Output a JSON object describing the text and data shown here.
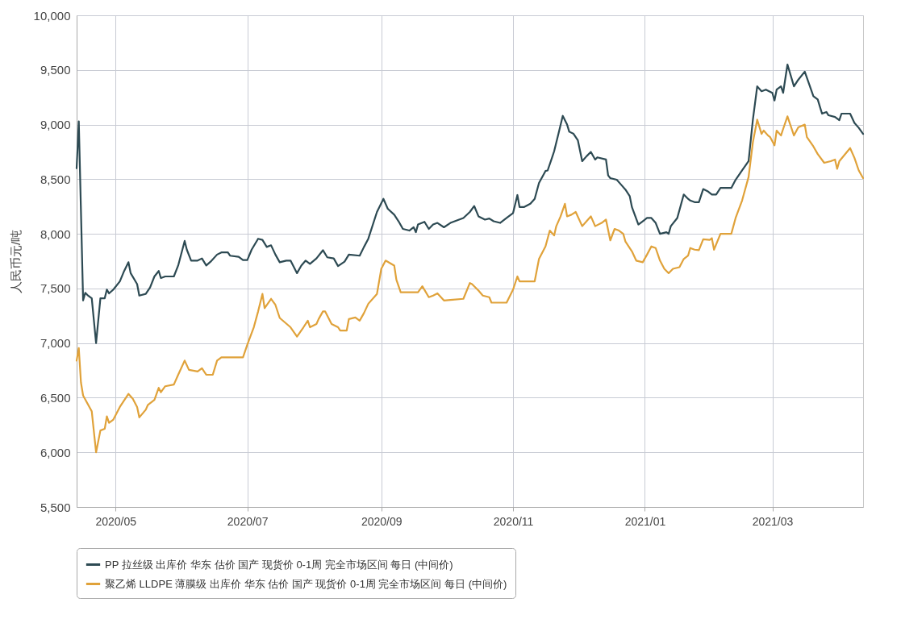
{
  "chart_data": {
    "type": "line",
    "ylabel": "人民币元/吨",
    "ylim": [
      5500,
      10000
    ],
    "yticks": [
      {
        "value": 5500,
        "label": "5,500"
      },
      {
        "value": 6000,
        "label": "6,000"
      },
      {
        "value": 6500,
        "label": "6,500"
      },
      {
        "value": 7000,
        "label": "7,000"
      },
      {
        "value": 7500,
        "label": "7,500"
      },
      {
        "value": 8000,
        "label": "8,000"
      },
      {
        "value": 8500,
        "label": "8,500"
      },
      {
        "value": 9000,
        "label": "9,000"
      },
      {
        "value": 9500,
        "label": "9,500"
      },
      {
        "value": 10000,
        "label": "10,000"
      }
    ],
    "xlim": [
      "2020-04-13",
      "2021-04-12"
    ],
    "xticks": [
      {
        "value": "2020-05",
        "label": "2020/05"
      },
      {
        "value": "2020-07",
        "label": "2020/07"
      },
      {
        "value": "2020-09",
        "label": "2020/09"
      },
      {
        "value": "2020-11",
        "label": "2020/11"
      },
      {
        "value": "2021-01",
        "label": "2021/01"
      },
      {
        "value": "2021-03",
        "label": "2021/03"
      }
    ],
    "grid": true,
    "legend": "bottom",
    "line_style": "solid",
    "series": [
      {
        "name": "PP 拉丝级 出库价 华东 估价 国产 现货价 0-1周 完全市场区间 每日 (中间价)",
        "color": "#2d4a53",
        "x": [
          "2020-04-13",
          "2020-04-14",
          "2020-04-16",
          "2020-04-17",
          "2020-04-18",
          "2020-04-20",
          "2020-04-22",
          "2020-04-24",
          "2020-04-26",
          "2020-04-27",
          "2020-04-28",
          "2020-04-30",
          "2020-05-03",
          "2020-05-05",
          "2020-05-07",
          "2020-05-08",
          "2020-05-11",
          "2020-05-12",
          "2020-05-15",
          "2020-05-17",
          "2020-05-19",
          "2020-05-21",
          "2020-05-22",
          "2020-05-24",
          "2020-05-28",
          "2020-05-30",
          "2020-06-02",
          "2020-06-03",
          "2020-06-05",
          "2020-06-08",
          "2020-06-10",
          "2020-06-12",
          "2020-06-14",
          "2020-06-17",
          "2020-06-19",
          "2020-06-22",
          "2020-06-23",
          "2020-06-27",
          "2020-06-29",
          "2020-07-01",
          "2020-07-03",
          "2020-07-06",
          "2020-07-08",
          "2020-07-10",
          "2020-07-12",
          "2020-07-14",
          "2020-07-16",
          "2020-07-19",
          "2020-07-21",
          "2020-07-24",
          "2020-07-26",
          "2020-07-28",
          "2020-07-30",
          "2020-08-02",
          "2020-08-05",
          "2020-08-07",
          "2020-08-10",
          "2020-08-12",
          "2020-08-15",
          "2020-08-17",
          "2020-08-22",
          "2020-08-24",
          "2020-08-26",
          "2020-08-30",
          "2020-09-02",
          "2020-09-04",
          "2020-09-07",
          "2020-09-09",
          "2020-09-11",
          "2020-09-14",
          "2020-09-16",
          "2020-09-17",
          "2020-09-18",
          "2020-09-21",
          "2020-09-23",
          "2020-09-25",
          "2020-09-27",
          "2020-09-30",
          "2020-10-03",
          "2020-10-09",
          "2020-10-12",
          "2020-10-14",
          "2020-10-16",
          "2020-10-19",
          "2020-10-21",
          "2020-10-23",
          "2020-10-26",
          "2020-10-29",
          "2020-11-01",
          "2020-11-03",
          "2020-11-04",
          "2020-11-06",
          "2020-11-09",
          "2020-11-11",
          "2020-11-13",
          "2020-11-16",
          "2020-11-17",
          "2020-11-19",
          "2020-11-20",
          "2020-11-22",
          "2020-11-24",
          "2020-11-26",
          "2020-11-27",
          "2020-11-29",
          "2020-12-01",
          "2020-12-03",
          "2020-12-05",
          "2020-12-07",
          "2020-12-09",
          "2020-12-10",
          "2020-12-14",
          "2020-12-15",
          "2020-12-16",
          "2020-12-19",
          "2020-12-21",
          "2020-12-23",
          "2020-12-25",
          "2020-12-26",
          "2020-12-29",
          "2020-12-31",
          "2021-01-02",
          "2021-01-04",
          "2021-01-06",
          "2021-01-08",
          "2021-01-11",
          "2021-01-12",
          "2021-01-13",
          "2021-01-16",
          "2021-01-19",
          "2021-01-21",
          "2021-01-22",
          "2021-01-24",
          "2021-01-26",
          "2021-01-28",
          "2021-01-30",
          "2021-02-01",
          "2021-02-03",
          "2021-02-05",
          "2021-02-10",
          "2021-02-12",
          "2021-02-15",
          "2021-02-18",
          "2021-02-20",
          "2021-02-22",
          "2021-02-24",
          "2021-02-26",
          "2021-03-01",
          "2021-03-02",
          "2021-03-03",
          "2021-03-05",
          "2021-03-06",
          "2021-03-08",
          "2021-03-11",
          "2021-03-13",
          "2021-03-16",
          "2021-03-20",
          "2021-03-22",
          "2021-03-24",
          "2021-03-26",
          "2021-03-27",
          "2021-03-30",
          "2021-04-01",
          "2021-04-02",
          "2021-04-06",
          "2021-04-08",
          "2021-04-10",
          "2021-04-12"
        ],
        "values": [
          8600,
          9030,
          7390,
          7460,
          7440,
          7410,
          7000,
          7410,
          7410,
          7490,
          7455,
          7490,
          7565,
          7660,
          7740,
          7640,
          7540,
          7435,
          7450,
          7510,
          7610,
          7660,
          7595,
          7610,
          7610,
          7710,
          7935,
          7855,
          7755,
          7755,
          7775,
          7710,
          7745,
          7810,
          7830,
          7830,
          7800,
          7790,
          7760,
          7760,
          7855,
          7955,
          7945,
          7880,
          7895,
          7810,
          7740,
          7755,
          7755,
          7640,
          7710,
          7755,
          7725,
          7775,
          7850,
          7785,
          7775,
          7705,
          7745,
          7810,
          7800,
          7880,
          7955,
          8200,
          8320,
          8230,
          8175,
          8115,
          8045,
          8030,
          8060,
          8015,
          8085,
          8110,
          8045,
          8085,
          8100,
          8060,
          8100,
          8145,
          8200,
          8255,
          8160,
          8130,
          8140,
          8115,
          8100,
          8145,
          8190,
          8355,
          8245,
          8245,
          8275,
          8320,
          8465,
          8575,
          8580,
          8695,
          8755,
          8915,
          9080,
          9000,
          8935,
          8915,
          8855,
          8665,
          8710,
          8750,
          8680,
          8700,
          8680,
          8535,
          8510,
          8495,
          8450,
          8405,
          8345,
          8245,
          8085,
          8115,
          8145,
          8145,
          8100,
          8000,
          8015,
          8000,
          8070,
          8145,
          8360,
          8320,
          8305,
          8290,
          8290,
          8410,
          8390,
          8360,
          8360,
          8420,
          8420,
          8495,
          8580,
          8665,
          9045,
          9350,
          9305,
          9320,
          9290,
          9220,
          9320,
          9350,
          9290,
          9550,
          9350,
          9410,
          9485,
          9260,
          9230,
          9100,
          9115,
          9085,
          9070,
          9040,
          9100,
          9100,
          9015,
          8970,
          8915
        ]
      },
      {
        "name": "聚乙烯 LLDPE 薄膜级 出库价 华东 估价 国产 现货价 0-1周 完全市场区间 每日 (中间价)",
        "color": "#e0a23a",
        "x": [
          "2020-04-13",
          "2020-04-14",
          "2020-04-15",
          "2020-04-16",
          "2020-04-20",
          "2020-04-22",
          "2020-04-24",
          "2020-04-26",
          "2020-04-27",
          "2020-04-28",
          "2020-04-30",
          "2020-05-03",
          "2020-05-07",
          "2020-05-09",
          "2020-05-11",
          "2020-05-12",
          "2020-05-15",
          "2020-05-16",
          "2020-05-19",
          "2020-05-21",
          "2020-05-22",
          "2020-05-24",
          "2020-05-28",
          "2020-05-30",
          "2020-06-02",
          "2020-06-04",
          "2020-06-08",
          "2020-06-10",
          "2020-06-12",
          "2020-06-15",
          "2020-06-17",
          "2020-06-19",
          "2020-06-29",
          "2020-07-01",
          "2020-07-04",
          "2020-07-06",
          "2020-07-08",
          "2020-07-09",
          "2020-07-12",
          "2020-07-14",
          "2020-07-16",
          "2020-07-21",
          "2020-07-24",
          "2020-07-27",
          "2020-07-29",
          "2020-07-30",
          "2020-08-02",
          "2020-08-03",
          "2020-08-05",
          "2020-08-06",
          "2020-08-09",
          "2020-08-12",
          "2020-08-13",
          "2020-08-16",
          "2020-08-17",
          "2020-08-20",
          "2020-08-22",
          "2020-08-24",
          "2020-08-26",
          "2020-08-30",
          "2020-09-01",
          "2020-09-03",
          "2020-09-07",
          "2020-09-08",
          "2020-09-10",
          "2020-09-18",
          "2020-09-20",
          "2020-09-23",
          "2020-09-25",
          "2020-09-27",
          "2020-09-30",
          "2020-10-03",
          "2020-10-09",
          "2020-10-12",
          "2020-10-13",
          "2020-10-16",
          "2020-10-18",
          "2020-10-21",
          "2020-10-22",
          "2020-10-29",
          "2020-11-01",
          "2020-11-03",
          "2020-11-04",
          "2020-11-11",
          "2020-11-13",
          "2020-11-16",
          "2020-11-18",
          "2020-11-20",
          "2020-11-21",
          "2020-11-23",
          "2020-11-25",
          "2020-11-26",
          "2020-11-28",
          "2020-11-30",
          "2020-12-03",
          "2020-12-05",
          "2020-12-07",
          "2020-12-09",
          "2020-12-12",
          "2020-12-14",
          "2020-12-16",
          "2020-12-18",
          "2020-12-20",
          "2020-12-22",
          "2020-12-23",
          "2020-12-26",
          "2020-12-28",
          "2020-12-31",
          "2021-01-02",
          "2021-01-04",
          "2021-01-06",
          "2021-01-08",
          "2021-01-10",
          "2021-01-12",
          "2021-01-14",
          "2021-01-17",
          "2021-01-19",
          "2021-01-21",
          "2021-01-22",
          "2021-01-24",
          "2021-01-26",
          "2021-01-28",
          "2021-01-31",
          "2021-02-01",
          "2021-02-02",
          "2021-02-05",
          "2021-02-10",
          "2021-02-12",
          "2021-02-15",
          "2021-02-18",
          "2021-02-20",
          "2021-02-22",
          "2021-02-24",
          "2021-02-25",
          "2021-02-27",
          "2021-02-28",
          "2021-03-02",
          "2021-03-03",
          "2021-03-05",
          "2021-03-06",
          "2021-03-08",
          "2021-03-11",
          "2021-03-13",
          "2021-03-16",
          "2021-03-17",
          "2021-03-20",
          "2021-03-22",
          "2021-03-25",
          "2021-03-28",
          "2021-03-30",
          "2021-03-31",
          "2021-04-01",
          "2021-04-06",
          "2021-04-08",
          "2021-04-10",
          "2021-04-12"
        ],
        "values": [
          6840,
          6955,
          6640,
          6520,
          6375,
          6000,
          6200,
          6215,
          6330,
          6270,
          6300,
          6415,
          6535,
          6490,
          6415,
          6320,
          6390,
          6435,
          6480,
          6590,
          6550,
          6605,
          6620,
          6710,
          6840,
          6755,
          6740,
          6770,
          6710,
          6710,
          6840,
          6870,
          6870,
          6985,
          7145,
          7290,
          7450,
          7320,
          7405,
          7350,
          7230,
          7145,
          7060,
          7145,
          7205,
          7145,
          7175,
          7220,
          7290,
          7290,
          7175,
          7145,
          7115,
          7115,
          7220,
          7235,
          7205,
          7275,
          7360,
          7450,
          7680,
          7755,
          7710,
          7580,
          7465,
          7465,
          7520,
          7420,
          7435,
          7455,
          7390,
          7395,
          7405,
          7550,
          7540,
          7480,
          7435,
          7420,
          7370,
          7370,
          7490,
          7610,
          7565,
          7565,
          7770,
          7885,
          8030,
          7985,
          8070,
          8160,
          8275,
          8160,
          8175,
          8200,
          8070,
          8115,
          8160,
          8070,
          8100,
          8130,
          7940,
          8045,
          8030,
          8000,
          7930,
          7840,
          7755,
          7740,
          7810,
          7885,
          7870,
          7755,
          7680,
          7640,
          7680,
          7695,
          7770,
          7800,
          7870,
          7855,
          7850,
          7950,
          7945,
          7960,
          7855,
          8000,
          8000,
          8145,
          8305,
          8520,
          8840,
          9045,
          8915,
          8945,
          8900,
          8885,
          8810,
          8945,
          8900,
          8960,
          9075,
          8900,
          8975,
          9000,
          8885,
          8800,
          8730,
          8650,
          8665,
          8680,
          8595,
          8665,
          8785,
          8695,
          8580,
          8510
        ]
      }
    ]
  }
}
